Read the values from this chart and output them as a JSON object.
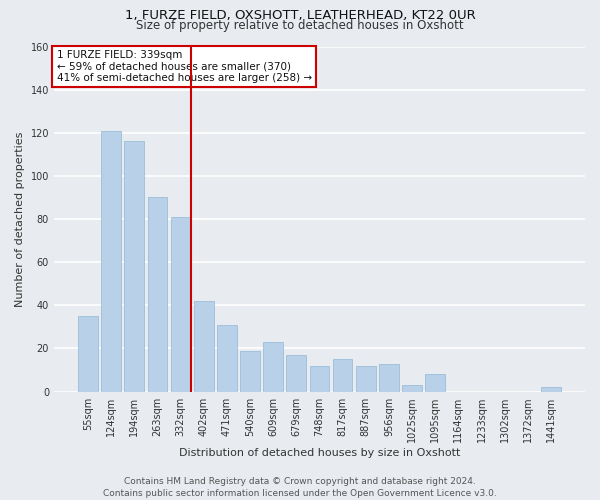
{
  "title": "1, FURZE FIELD, OXSHOTT, LEATHERHEAD, KT22 0UR",
  "subtitle": "Size of property relative to detached houses in Oxshott",
  "xlabel": "Distribution of detached houses by size in Oxshott",
  "ylabel": "Number of detached properties",
  "categories": [
    "55sqm",
    "124sqm",
    "194sqm",
    "263sqm",
    "332sqm",
    "402sqm",
    "471sqm",
    "540sqm",
    "609sqm",
    "679sqm",
    "748sqm",
    "817sqm",
    "887sqm",
    "956sqm",
    "1025sqm",
    "1095sqm",
    "1164sqm",
    "1233sqm",
    "1302sqm",
    "1372sqm",
    "1441sqm"
  ],
  "values": [
    35,
    121,
    116,
    90,
    81,
    42,
    31,
    19,
    23,
    17,
    12,
    15,
    12,
    13,
    3,
    8,
    0,
    0,
    0,
    0,
    2
  ],
  "bar_color": "#b8d0e8",
  "bar_edge_color": "#90b8d8",
  "ref_line_color": "#cc0000",
  "ref_line_label": "1 FURZE FIELD: 339sqm",
  "annotation_line1": "← 59% of detached houses are smaller (370)",
  "annotation_line2": "41% of semi-detached houses are larger (258) →",
  "annotation_box_edge": "#cc0000",
  "ylim": [
    0,
    160
  ],
  "yticks": [
    0,
    20,
    40,
    60,
    80,
    100,
    120,
    140,
    160
  ],
  "background_color": "#e8ecf0",
  "grid_color": "#ffffff",
  "footer_line1": "Contains HM Land Registry data © Crown copyright and database right 2024.",
  "footer_line2": "Contains public sector information licensed under the Open Government Licence v3.0.",
  "title_fontsize": 9.5,
  "subtitle_fontsize": 8.5,
  "axis_label_fontsize": 8,
  "tick_fontsize": 7,
  "annotation_fontsize": 7.5,
  "footer_fontsize": 6.5
}
